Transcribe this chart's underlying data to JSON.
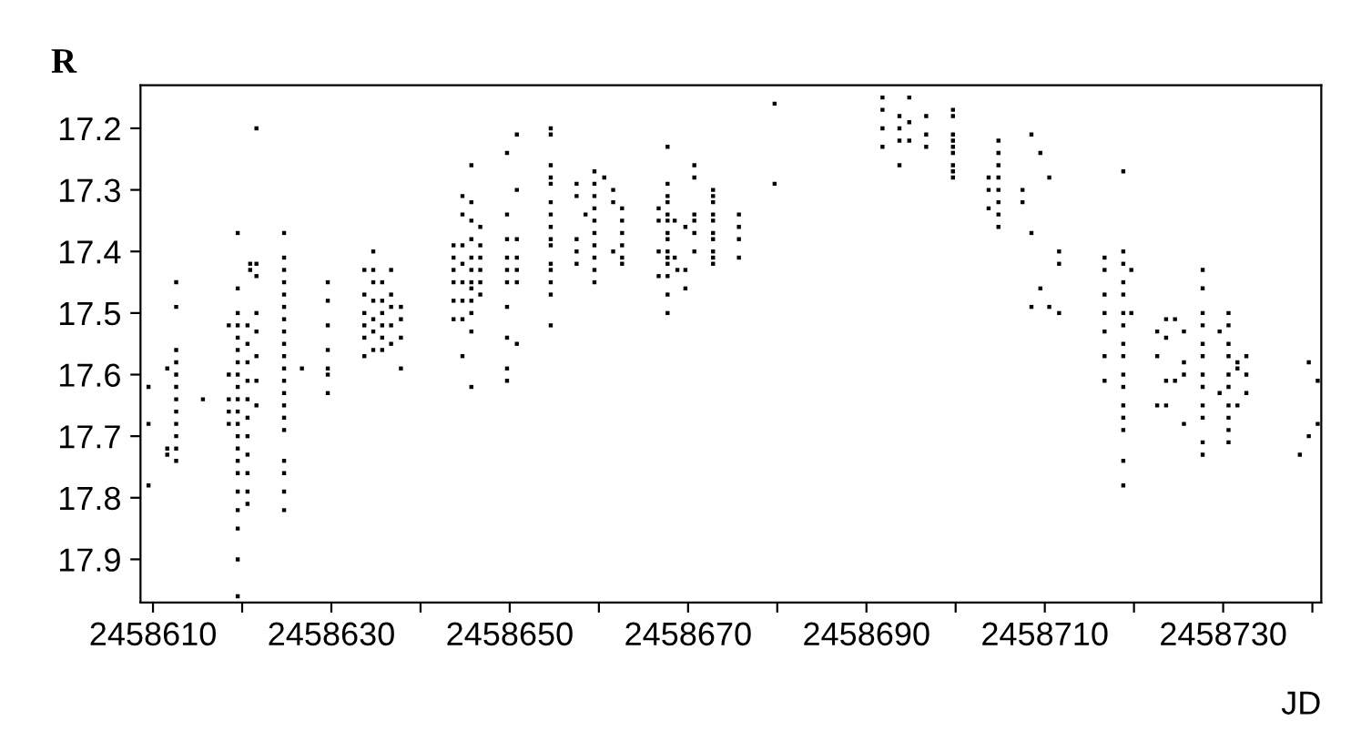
{
  "chart_data": {
    "type": "scatter",
    "xlabel": "JD",
    "ylabel": "R",
    "xlim": [
      2458608.6,
      2458741.0
    ],
    "ylim": [
      17.97,
      17.13
    ],
    "xticks": [
      2458610,
      {
        "value": 2458620,
        "label": null
      },
      2458630,
      {
        "value": 2458640,
        "label": null
      },
      2458650,
      {
        "value": 2458660,
        "label": null
      },
      2458670,
      {
        "value": 2458680,
        "label": null
      },
      2458690,
      {
        "value": 2458700,
        "label": null
      },
      2458710,
      {
        "value": 2458720,
        "label": null
      },
      2458730,
      {
        "value": 2458740,
        "label": null
      }
    ],
    "yticks": [
      17.2,
      17.3,
      17.4,
      17.5,
      17.6,
      17.7,
      17.8,
      17.9
    ],
    "grid": false,
    "legend": false,
    "marker": "square",
    "series": [
      {
        "color": "#000000",
        "x": [
          2458609.5,
          2458609.5,
          2458609.5,
          2458611.6,
          2458611.6,
          2458611.6,
          2458612.6,
          2458612.6,
          2458612.6,
          2458612.6,
          2458612.6,
          2458612.6,
          2458612.6,
          2458612.6,
          2458612.6,
          2458612.6,
          2458612.6,
          2458612.6,
          2458615.6,
          2458618.5,
          2458618.5,
          2458618.5,
          2458618.5,
          2458618.5,
          2458619.5,
          2458619.5,
          2458619.5,
          2458619.5,
          2458619.5,
          2458619.5,
          2458619.5,
          2458619.5,
          2458619.5,
          2458619.5,
          2458619.5,
          2458619.5,
          2458619.5,
          2458619.5,
          2458619.5,
          2458619.5,
          2458619.5,
          2458619.5,
          2458619.5,
          2458619.5,
          2458619.5,
          2458620.6,
          2458620.6,
          2458620.6,
          2458620.6,
          2458620.6,
          2458620.6,
          2458620.6,
          2458620.6,
          2458620.6,
          2458620.6,
          2458620.6,
          2458620.9,
          2458620.9,
          2458621.6,
          2458621.6,
          2458621.6,
          2458621.6,
          2458621.6,
          2458621.6,
          2458621.6,
          2458621.6,
          2458624.7,
          2458624.7,
          2458624.7,
          2458624.7,
          2458624.7,
          2458624.7,
          2458624.7,
          2458624.7,
          2458624.7,
          2458624.7,
          2458624.7,
          2458624.7,
          2458624.7,
          2458624.7,
          2458624.7,
          2458624.7,
          2458624.7,
          2458624.7,
          2458624.7,
          2458624.7,
          2458626.7,
          2458629.6,
          2458629.6,
          2458629.6,
          2458629.6,
          2458629.6,
          2458629.6,
          2458629.6,
          2458633.7,
          2458633.7,
          2458633.7,
          2458633.7,
          2458633.7,
          2458633.7,
          2458634.7,
          2458634.7,
          2458634.7,
          2458634.7,
          2458634.7,
          2458634.7,
          2458634.7,
          2458635.7,
          2458635.7,
          2458635.7,
          2458635.7,
          2458635.7,
          2458635.7,
          2458636.7,
          2458636.7,
          2458636.7,
          2458636.7,
          2458636.7,
          2458637.8,
          2458637.8,
          2458637.8,
          2458637.8,
          2458643.7,
          2458643.7,
          2458643.7,
          2458643.7,
          2458643.7,
          2458643.7,
          2458644.7,
          2458644.7,
          2458644.7,
          2458644.7,
          2458644.7,
          2458644.7,
          2458644.7,
          2458644.7,
          2458645.7,
          2458645.7,
          2458645.7,
          2458645.7,
          2458645.7,
          2458645.7,
          2458645.7,
          2458645.7,
          2458645.7,
          2458645.7,
          2458645.7,
          2458645.7,
          2458646.7,
          2458646.7,
          2458646.7,
          2458646.7,
          2458646.7,
          2458646.7,
          2458649.7,
          2458649.7,
          2458649.7,
          2458649.7,
          2458649.7,
          2458649.7,
          2458649.7,
          2458649.7,
          2458649.7,
          2458649.7,
          2458650.8,
          2458650.8,
          2458650.8,
          2458650.8,
          2458650.8,
          2458650.8,
          2458650.8,
          2458654.6,
          2458654.6,
          2458654.6,
          2458654.6,
          2458654.6,
          2458654.6,
          2458654.6,
          2458654.6,
          2458654.6,
          2458654.6,
          2458654.6,
          2458654.6,
          2458654.6,
          2458654.6,
          2458654.6,
          2458657.5,
          2458657.5,
          2458657.5,
          2458657.5,
          2458657.5,
          2458658.5,
          2458659.5,
          2458659.5,
          2458659.5,
          2458659.5,
          2458659.5,
          2458659.5,
          2458659.5,
          2458659.5,
          2458659.5,
          2458659.5,
          2458660.6,
          2458661.6,
          2458661.6,
          2458661.6,
          2458662.6,
          2458662.6,
          2458662.6,
          2458662.6,
          2458662.6,
          2458662.6,
          2458666.7,
          2458666.7,
          2458666.7,
          2458666.7,
          2458667.7,
          2458667.7,
          2458667.7,
          2458667.7,
          2458667.7,
          2458667.7,
          2458667.7,
          2458667.7,
          2458667.7,
          2458667.7,
          2458667.7,
          2458667.7,
          2458667.7,
          2458667.7,
          2458668.5,
          2458668.5,
          2458668.8,
          2458669.7,
          2458669.7,
          2458669.7,
          2458670.7,
          2458670.7,
          2458670.7,
          2458670.7,
          2458670.7,
          2458670.7,
          2458672.8,
          2458672.8,
          2458672.8,
          2458672.8,
          2458672.8,
          2458672.8,
          2458672.8,
          2458672.8,
          2458672.8,
          2458672.8,
          2458675.7,
          2458675.7,
          2458675.7,
          2458675.7,
          2458679.7,
          2458679.7,
          2458691.8,
          2458691.8,
          2458691.8,
          2458691.8,
          2458693.7,
          2458693.7,
          2458693.7,
          2458693.7,
          2458694.8,
          2458694.8,
          2458694.8,
          2458696.7,
          2458696.7,
          2458696.7,
          2458699.7,
          2458699.7,
          2458699.7,
          2458699.7,
          2458699.7,
          2458699.7,
          2458699.7,
          2458699.7,
          2458699.7,
          2458703.7,
          2458703.7,
          2458703.7,
          2458704.8,
          2458704.8,
          2458704.8,
          2458704.8,
          2458704.8,
          2458704.8,
          2458704.8,
          2458704.8,
          2458707.5,
          2458707.5,
          2458708.5,
          2458708.5,
          2458708.5,
          2458709.5,
          2458709.5,
          2458710.5,
          2458710.5,
          2458711.6,
          2458711.6,
          2458711.6,
          2458716.7,
          2458716.7,
          2458716.7,
          2458716.7,
          2458716.7,
          2458716.7,
          2458716.7,
          2458718.8,
          2458718.8,
          2458718.8,
          2458718.8,
          2458718.8,
          2458718.8,
          2458718.8,
          2458718.8,
          2458718.8,
          2458718.8,
          2458718.8,
          2458718.8,
          2458718.8,
          2458718.8,
          2458718.8,
          2458718.8,
          2458719.7,
          2458719.7,
          2458722.6,
          2458722.6,
          2458722.6,
          2458723.6,
          2458723.6,
          2458723.6,
          2458723.6,
          2458724.6,
          2458724.6,
          2458725.6,
          2458725.6,
          2458725.6,
          2458725.6,
          2458727.7,
          2458727.7,
          2458727.7,
          2458727.7,
          2458727.7,
          2458727.7,
          2458727.7,
          2458727.7,
          2458727.7,
          2458727.7,
          2458727.7,
          2458727.7,
          2458729.6,
          2458729.6,
          2458730.6,
          2458730.6,
          2458730.6,
          2458730.6,
          2458730.6,
          2458730.6,
          2458730.6,
          2458730.6,
          2458730.6,
          2458730.6,
          2458731.6,
          2458731.6,
          2458731.6,
          2458732.6,
          2458732.6,
          2458732.6,
          2458738.6,
          2458739.6,
          2458739.6,
          2458740.6,
          2458740.6
        ],
        "values": [
          17.62,
          17.68,
          17.78,
          17.59,
          17.72,
          17.73,
          17.45,
          17.49,
          17.56,
          17.58,
          17.6,
          17.62,
          17.64,
          17.66,
          17.68,
          17.7,
          17.72,
          17.74,
          17.64,
          17.52,
          17.6,
          17.64,
          17.66,
          17.68,
          17.37,
          17.46,
          17.5,
          17.52,
          17.54,
          17.56,
          17.58,
          17.6,
          17.62,
          17.64,
          17.66,
          17.68,
          17.7,
          17.72,
          17.74,
          17.76,
          17.79,
          17.82,
          17.85,
          17.9,
          17.96,
          17.52,
          17.55,
          17.58,
          17.61,
          17.64,
          17.67,
          17.7,
          17.73,
          17.76,
          17.79,
          17.81,
          17.42,
          17.43,
          17.2,
          17.42,
          17.44,
          17.5,
          17.53,
          17.57,
          17.61,
          17.65,
          17.37,
          17.41,
          17.43,
          17.45,
          17.47,
          17.49,
          17.51,
          17.53,
          17.55,
          17.57,
          17.59,
          17.61,
          17.63,
          17.65,
          17.67,
          17.69,
          17.74,
          17.76,
          17.79,
          17.82,
          17.59,
          17.45,
          17.48,
          17.52,
          17.56,
          17.59,
          17.6,
          17.63,
          17.43,
          17.47,
          17.5,
          17.52,
          17.54,
          17.57,
          17.4,
          17.43,
          17.45,
          17.48,
          17.51,
          17.53,
          17.56,
          17.45,
          17.48,
          17.5,
          17.52,
          17.54,
          17.56,
          17.43,
          17.47,
          17.49,
          17.52,
          17.55,
          17.49,
          17.51,
          17.54,
          17.59,
          17.39,
          17.41,
          17.43,
          17.45,
          17.48,
          17.51,
          17.31,
          17.34,
          17.39,
          17.42,
          17.45,
          17.48,
          17.51,
          17.57,
          17.26,
          17.32,
          17.35,
          17.38,
          17.41,
          17.43,
          17.45,
          17.46,
          17.48,
          17.5,
          17.53,
          17.62,
          17.36,
          17.39,
          17.41,
          17.43,
          17.45,
          17.47,
          17.24,
          17.34,
          17.38,
          17.41,
          17.43,
          17.45,
          17.49,
          17.54,
          17.59,
          17.61,
          17.21,
          17.3,
          17.38,
          17.41,
          17.43,
          17.45,
          17.55,
          17.2,
          17.21,
          17.26,
          17.28,
          17.29,
          17.32,
          17.34,
          17.36,
          17.38,
          17.39,
          17.42,
          17.43,
          17.45,
          17.47,
          17.52,
          17.29,
          17.31,
          17.38,
          17.4,
          17.42,
          17.34,
          17.27,
          17.29,
          17.31,
          17.33,
          17.35,
          17.37,
          17.39,
          17.41,
          17.43,
          17.45,
          17.28,
          17.3,
          17.32,
          17.4,
          17.33,
          17.35,
          17.37,
          17.39,
          17.41,
          17.42,
          17.33,
          17.35,
          17.4,
          17.44,
          17.23,
          17.29,
          17.31,
          17.32,
          17.34,
          17.35,
          17.37,
          17.38,
          17.4,
          17.41,
          17.42,
          17.44,
          17.47,
          17.5,
          17.35,
          17.41,
          17.43,
          17.36,
          17.43,
          17.46,
          17.26,
          17.28,
          17.34,
          17.35,
          17.37,
          17.4,
          17.3,
          17.31,
          17.32,
          17.34,
          17.35,
          17.37,
          17.38,
          17.4,
          17.41,
          17.42,
          17.34,
          17.36,
          17.38,
          17.41,
          17.16,
          17.29,
          17.15,
          17.17,
          17.2,
          17.23,
          17.18,
          17.2,
          17.22,
          17.26,
          17.15,
          17.19,
          17.22,
          17.18,
          17.21,
          17.23,
          17.17,
          17.18,
          17.21,
          17.22,
          17.23,
          17.24,
          17.26,
          17.27,
          17.28,
          17.28,
          17.3,
          17.33,
          17.22,
          17.24,
          17.26,
          17.28,
          17.3,
          17.32,
          17.34,
          17.36,
          17.3,
          17.32,
          17.21,
          17.37,
          17.49,
          17.24,
          17.46,
          17.28,
          17.49,
          17.4,
          17.42,
          17.5,
          17.41,
          17.43,
          17.47,
          17.5,
          17.53,
          17.57,
          17.61,
          17.27,
          17.4,
          17.42,
          17.45,
          17.47,
          17.5,
          17.52,
          17.55,
          17.57,
          17.6,
          17.62,
          17.65,
          17.67,
          17.69,
          17.74,
          17.78,
          17.43,
          17.5,
          17.53,
          17.57,
          17.65,
          17.51,
          17.54,
          17.61,
          17.65,
          17.51,
          17.61,
          17.53,
          17.58,
          17.6,
          17.68,
          17.43,
          17.46,
          17.5,
          17.52,
          17.55,
          17.57,
          17.6,
          17.62,
          17.65,
          17.67,
          17.71,
          17.73,
          17.53,
          17.63,
          17.5,
          17.52,
          17.55,
          17.57,
          17.6,
          17.62,
          17.65,
          17.67,
          17.69,
          17.71,
          17.58,
          17.59,
          17.65,
          17.57,
          17.6,
          17.63,
          17.73,
          17.58,
          17.7,
          17.61,
          17.68
        ]
      }
    ]
  }
}
